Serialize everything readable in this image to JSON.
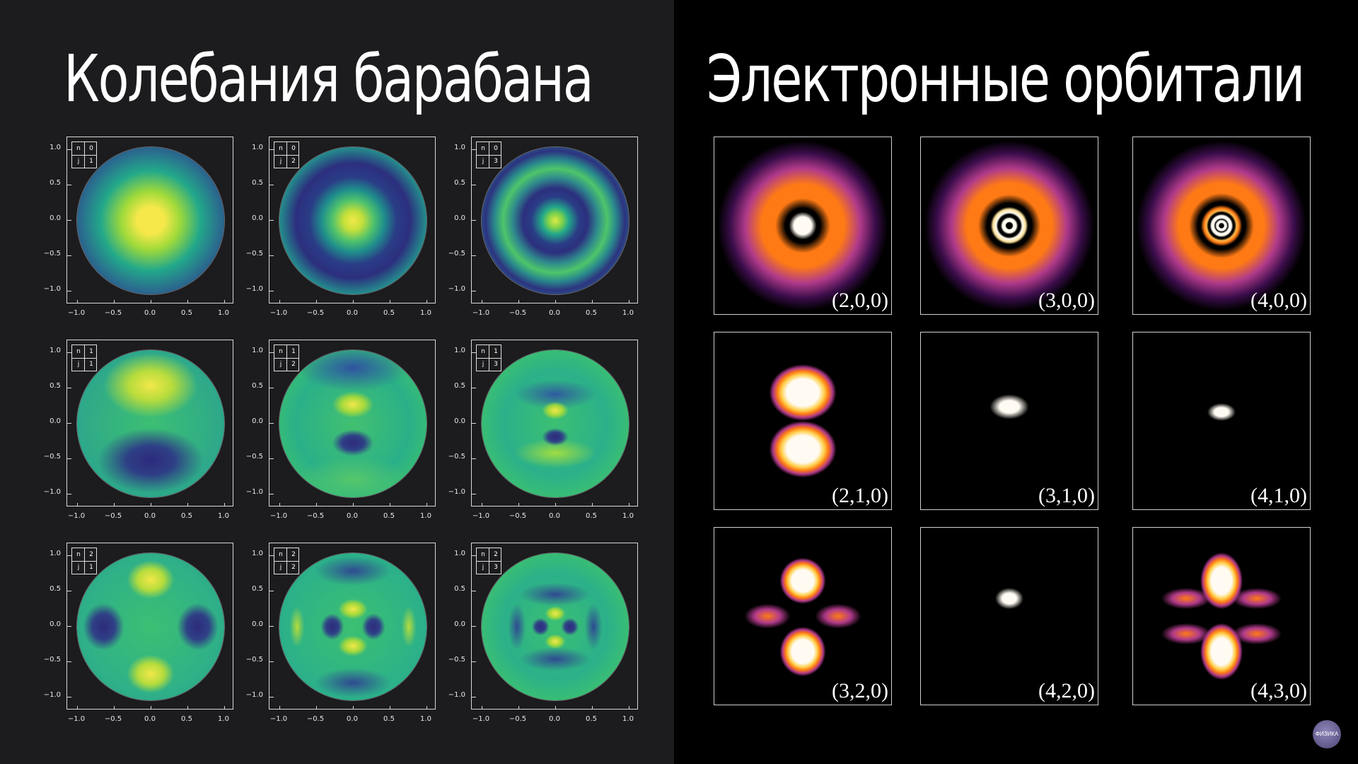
{
  "titles": {
    "left": "Колебания барабана",
    "right": "Электронные орбитали"
  },
  "axis_ticks": {
    "y": [
      "1.0",
      "0.5",
      "0.0",
      "−0.5",
      "−1.0"
    ],
    "x": [
      "−1.0",
      "−0.5",
      "0.0",
      "0.5",
      "1.0"
    ]
  },
  "drum_modes": [
    {
      "n": "0",
      "j": "1"
    },
    {
      "n": "0",
      "j": "2"
    },
    {
      "n": "0",
      "j": "3"
    },
    {
      "n": "1",
      "j": "1"
    },
    {
      "n": "1",
      "j": "2"
    },
    {
      "n": "1",
      "j": "3"
    },
    {
      "n": "2",
      "j": "1"
    },
    {
      "n": "2",
      "j": "2"
    },
    {
      "n": "2",
      "j": "3"
    }
  ],
  "qbox_labels": {
    "n": "n",
    "j": "j"
  },
  "orbitals": [
    "(2,0,0)",
    "(3,0,0)",
    "(4,0,0)",
    "(2,1,0)",
    "(3,1,0)",
    "(4,1,0)",
    "(3,2,0)",
    "(4,2,0)",
    "(4,3,0)"
  ],
  "logo": {
    "text": "ФИЗИКА"
  },
  "colors": {
    "left_bg": "#1c1b1d",
    "right_bg": "#000000",
    "viridis_yellow": "#f6e84a",
    "viridis_navy": "#2a2f7f",
    "inferno_orange": "#ff7a14"
  }
}
